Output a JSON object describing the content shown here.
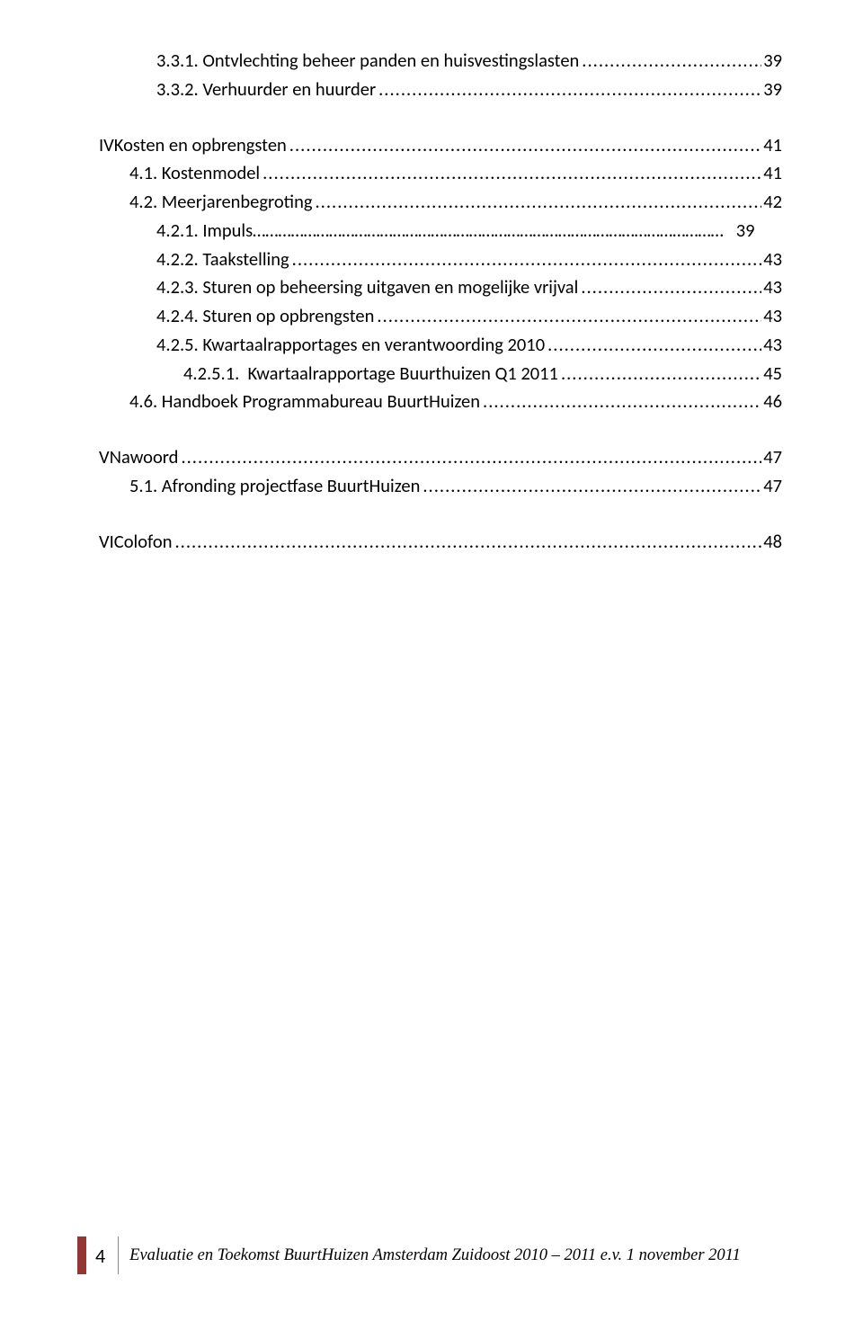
{
  "colors": {
    "footer_bar": "#943634",
    "text": "#000000",
    "background": "#ffffff",
    "divider": "#888888"
  },
  "typography": {
    "body_font": "Calibri",
    "body_size_pt": 12,
    "footer_font": "Century Schoolbook",
    "footer_size_pt": 11,
    "footer_italic": true
  },
  "toc": [
    {
      "indent": 2,
      "label": "3.3.1. Ontvlechting beheer panden en huisvestingslasten",
      "page": "39",
      "gap": false
    },
    {
      "indent": 2,
      "label": "3.3.2. Verhuurder en huurder",
      "page": "39",
      "gap": false
    },
    {
      "indent": 0,
      "roman": "IV",
      "label": "Kosten en opbrengsten",
      "page": "41",
      "gap": true
    },
    {
      "indent": 1,
      "label": "4.1. Kostenmodel",
      "page": "41",
      "gap": false
    },
    {
      "indent": 1,
      "label": "4.2. Meerjarenbegroting",
      "page": "42",
      "gap": false
    },
    {
      "indent": 2,
      "label": "4.2.1. Impuls…………………………………………………………………………………………………   39",
      "page": "",
      "gap": false,
      "noleader": true
    },
    {
      "indent": 2,
      "label": "4.2.2. Taakstelling",
      "page": "43",
      "gap": false
    },
    {
      "indent": 2,
      "label": "4.2.3. Sturen op beheersing uitgaven en mogelijke vrijval",
      "page": "43",
      "gap": false
    },
    {
      "indent": 2,
      "label": "4.2.4. Sturen op opbrengsten",
      "page": "43",
      "gap": false
    },
    {
      "indent": 2,
      "label": "4.2.5. Kwartaalrapportages en verantwoording 2010",
      "page": "43",
      "gap": false
    },
    {
      "indent": 3,
      "label": "4.2.5.1.  Kwartaalrapportage Buurthuizen Q1 2011",
      "page": "45",
      "gap": false
    },
    {
      "indent": 1,
      "label": "4.6. Handboek Programmabureau BuurtHuizen",
      "page": "46",
      "gap": false
    },
    {
      "indent": 0,
      "roman": "V",
      "label": "Nawoord",
      "page": "47",
      "gap": true
    },
    {
      "indent": 1,
      "label": "5.1. Afronding projectfase BuurtHuizen",
      "page": "47",
      "gap": false
    },
    {
      "indent": 0,
      "roman": "VI",
      "label": "Colofon",
      "page": "48",
      "gap": true
    }
  ],
  "footer": {
    "page_number": "4",
    "title": "Evaluatie en Toekomst BuurtHuizen Amsterdam Zuidoost 2010 – 2011 e.v.  1 november 2011"
  }
}
